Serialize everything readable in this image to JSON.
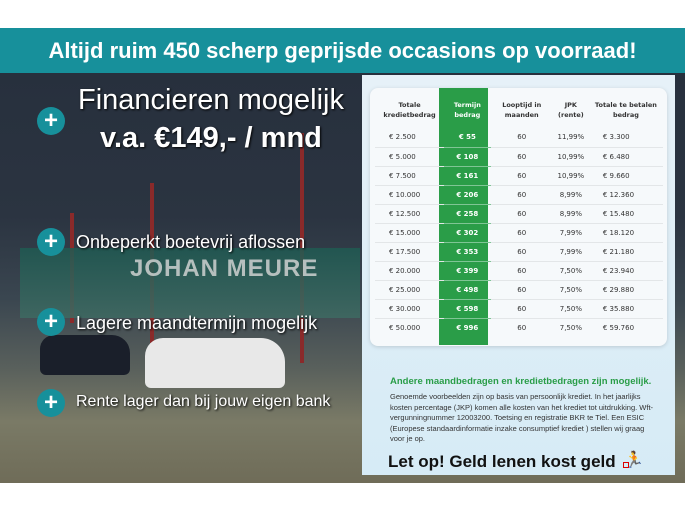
{
  "banner": {
    "title": "Altijd ruim 450 scherp geprijsde occasions op voorraad!",
    "color": "#17909b"
  },
  "background": {
    "sign_text": "JOHAN MEURE"
  },
  "hero": {
    "line1": "Financieren mogelijk",
    "line2": "v.a. €149,- / mnd"
  },
  "features": [
    {
      "icon": "plus-icon",
      "label": "Onbeperkt boetevrij aflossen"
    },
    {
      "icon": "plus-icon",
      "label": "Lagere maandtermijn mogelijk"
    },
    {
      "icon": "plus-icon",
      "label": "Rente lager dan bij jouw eigen bank"
    }
  ],
  "table": {
    "headers": [
      "Totale kredietbedrag",
      "Termijn bedrag",
      "Looptijd in maanden",
      "JPK (rente)",
      "Totale te betalen bedrag"
    ],
    "highlight_color": "#2a9d48",
    "rows": [
      [
        "€ 2.500",
        "€ 55",
        "60",
        "11,99%",
        "€ 3.300"
      ],
      [
        "€ 5.000",
        "€ 108",
        "60",
        "10,99%",
        "€ 6.480"
      ],
      [
        "€ 7.500",
        "€ 161",
        "60",
        "10,99%",
        "€ 9.660"
      ],
      [
        "€ 10.000",
        "€ 206",
        "60",
        "8,99%",
        "€ 12.360"
      ],
      [
        "€ 12.500",
        "€ 258",
        "60",
        "8,99%",
        "€ 15.480"
      ],
      [
        "€ 15.000",
        "€ 302",
        "60",
        "7,99%",
        "€ 18.120"
      ],
      [
        "€ 17.500",
        "€ 353",
        "60",
        "7,99%",
        "€ 21.180"
      ],
      [
        "€ 20.000",
        "€ 399",
        "60",
        "7,50%",
        "€ 23.940"
      ],
      [
        "€ 25.000",
        "€ 498",
        "60",
        "7,50%",
        "€ 29.880"
      ],
      [
        "€ 30.000",
        "€ 598",
        "60",
        "7,50%",
        "€ 35.880"
      ],
      [
        "€ 50.000",
        "€ 996",
        "60",
        "7,50%",
        "€ 59.760"
      ]
    ]
  },
  "note": {
    "heading": "Andere maandbedragen en kredietbedragen zijn mogelijk.",
    "body": "Genoemde voorbeelden zijn op basis van persoonlijk krediet. In het jaarlijks kosten percentage (JKP) komen alle kosten van het krediet tot uitdrukking. Wft-vergunningnummer 12003200. Toetsing en registratie BKR te Tiel. Een ESIC (Europese standaardinformatie inzake consumptief krediet ) stellen wij graag voor je op."
  },
  "warning": {
    "text": "Let op! Geld lenen kost geld",
    "icon": "running-man-icon"
  }
}
